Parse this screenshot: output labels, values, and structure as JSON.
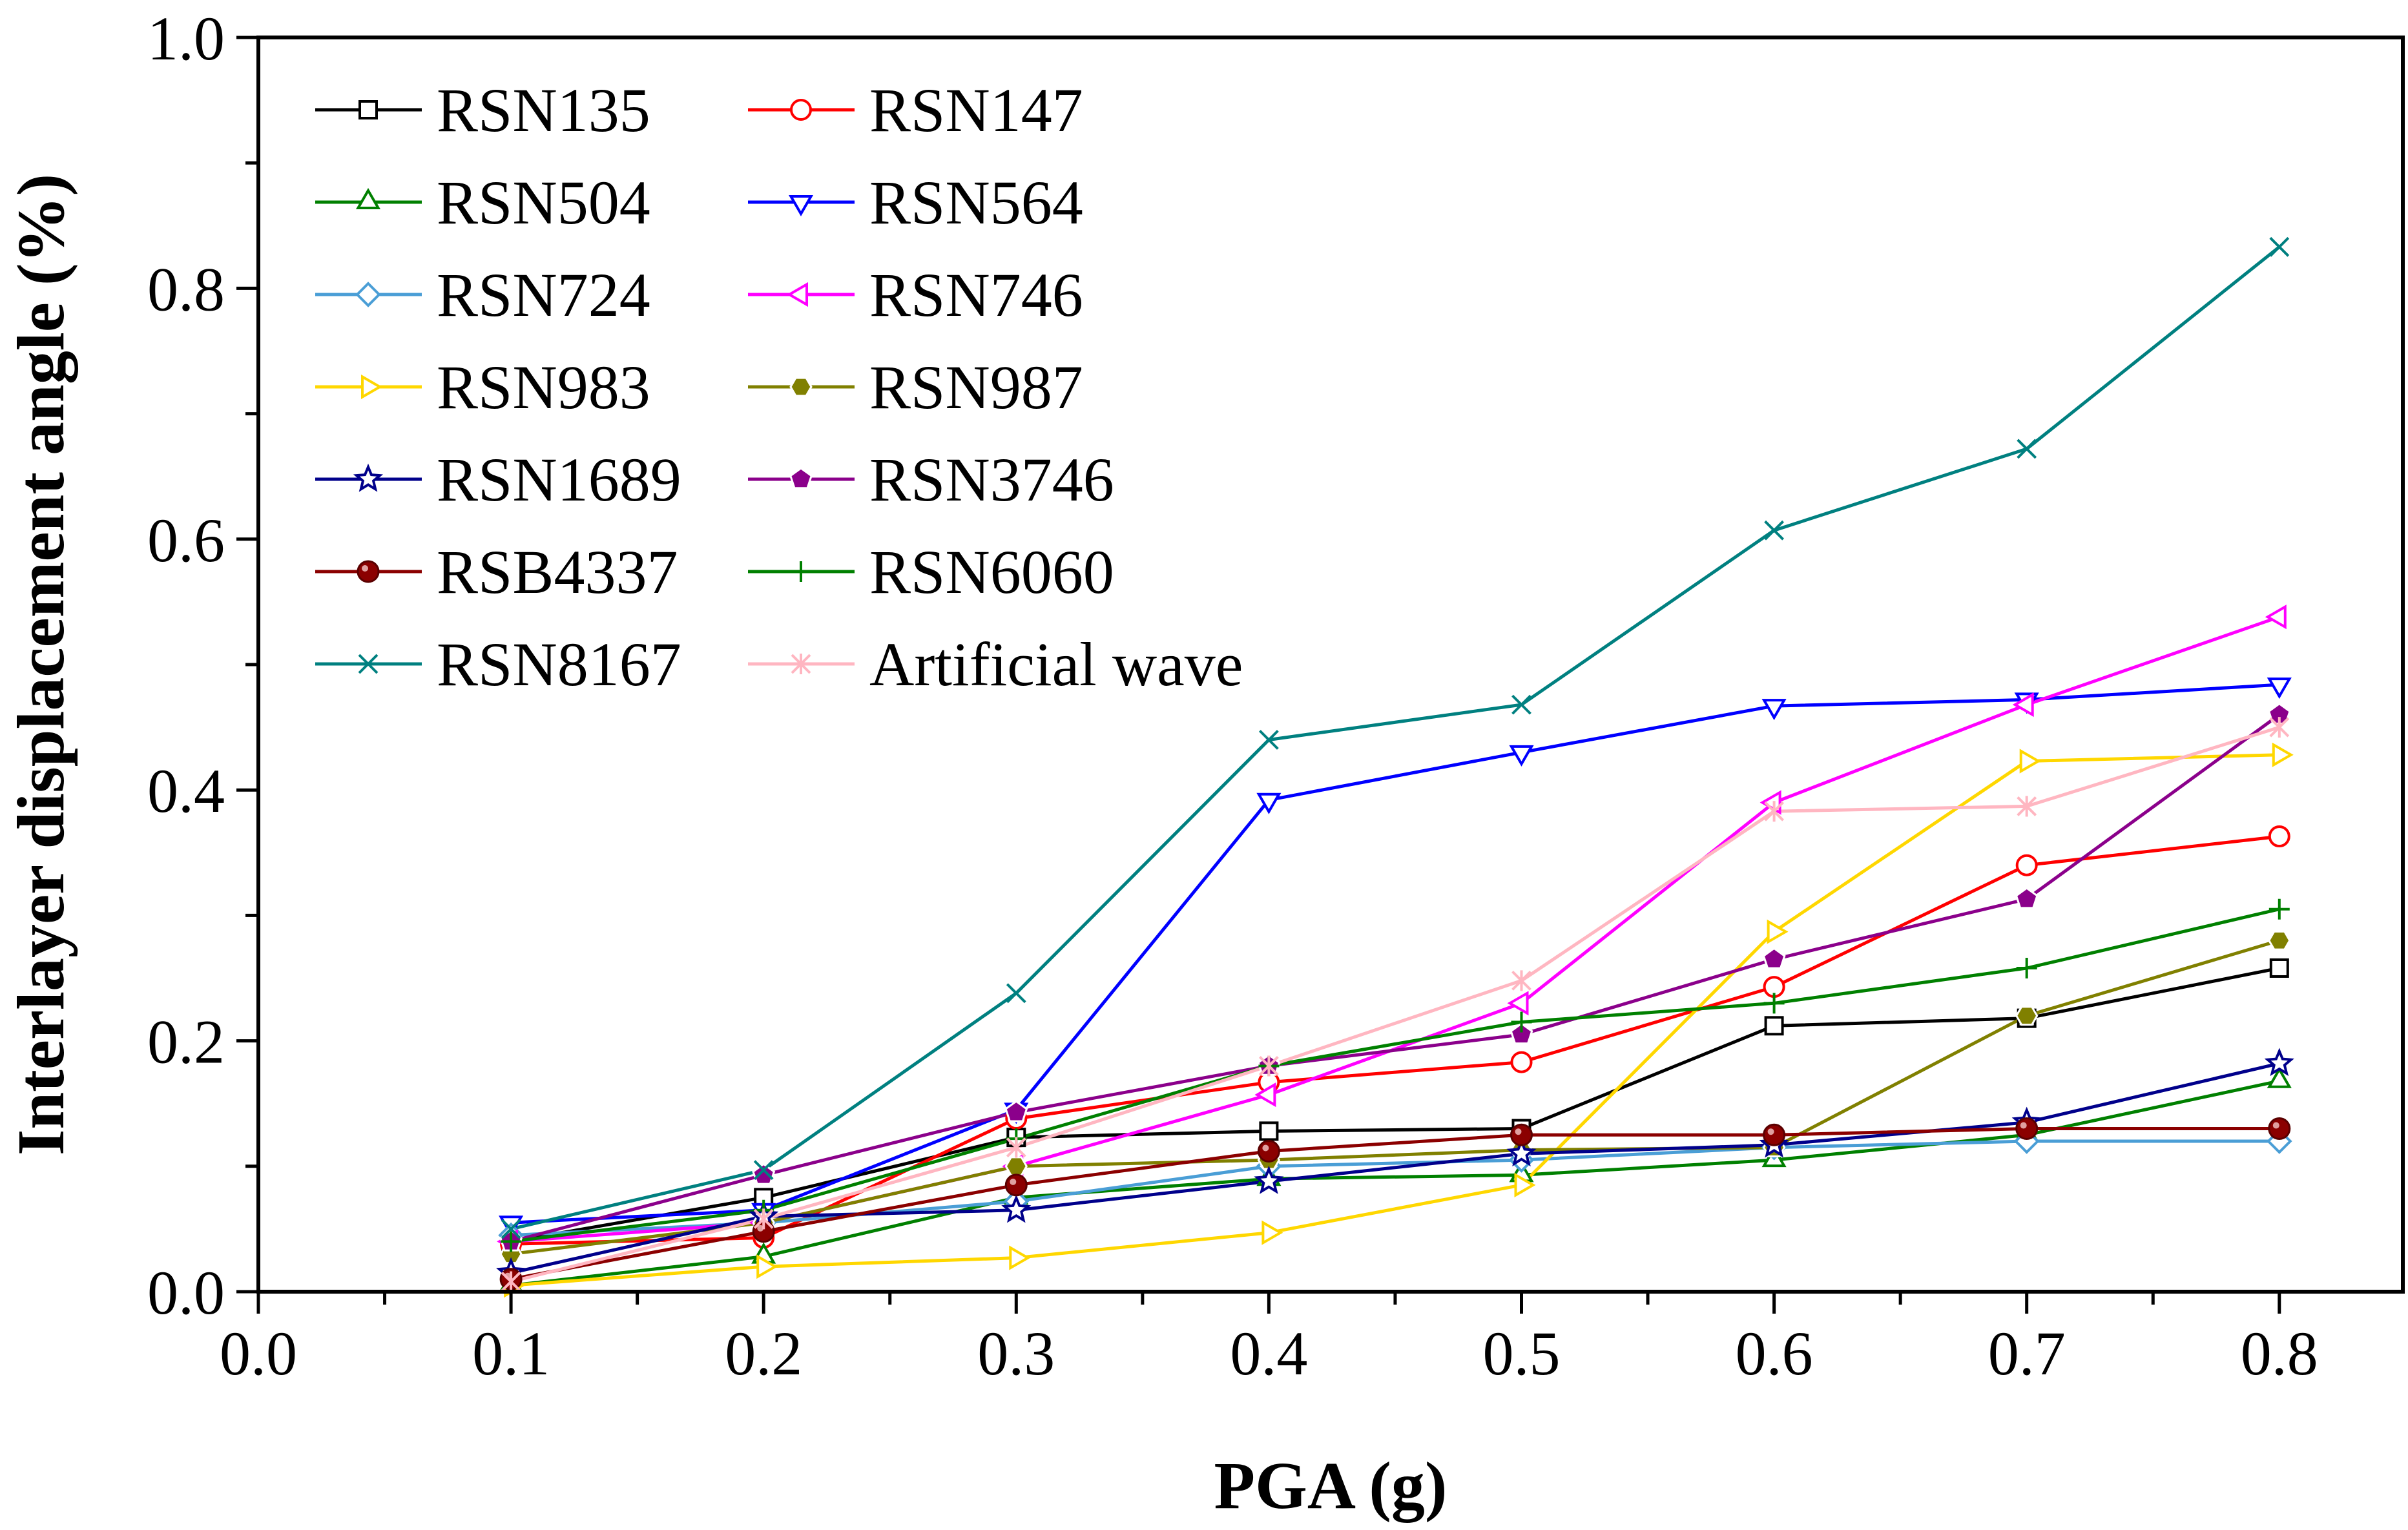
{
  "chart_data": {
    "type": "line",
    "title": "",
    "xlabel": "PGA (g)",
    "ylabel": "Interlayer displacement angle (%)",
    "xlim": [
      0.0,
      0.85
    ],
    "ylim": [
      0.0,
      1.0
    ],
    "xticks": [
      "0.0",
      "0.1",
      "0.2",
      "0.3",
      "0.4",
      "0.5",
      "0.6",
      "0.7",
      "0.8"
    ],
    "yticks": [
      "0.0",
      "0.2",
      "0.4",
      "0.6",
      "0.8",
      "1.0"
    ],
    "grid": false,
    "legend_position": "top-left",
    "x": [
      0.1,
      0.2,
      0.3,
      0.4,
      0.5,
      0.6,
      0.7,
      0.8
    ],
    "series": [
      {
        "name": "RSN135",
        "color": "#000000",
        "marker": "square-open",
        "values": [
          0.04,
          0.075,
          0.123,
          0.128,
          0.13,
          0.212,
          0.218,
          0.258
        ]
      },
      {
        "name": "RSN147",
        "color": "#ff0000",
        "marker": "circle-open",
        "values": [
          0.038,
          0.043,
          0.138,
          0.167,
          0.183,
          0.243,
          0.34,
          0.363
        ]
      },
      {
        "name": "RSN504",
        "color": "#008000",
        "marker": "triangle-up-open",
        "values": [
          0.005,
          0.028,
          0.075,
          0.09,
          0.093,
          0.105,
          0.125,
          0.168
        ]
      },
      {
        "name": "RSN564",
        "color": "#0000ff",
        "marker": "triangle-down-open",
        "values": [
          0.055,
          0.065,
          0.145,
          0.392,
          0.43,
          0.467,
          0.472,
          0.484
        ]
      },
      {
        "name": "RSN724",
        "color": "#4a9ed6",
        "marker": "diamond-open",
        "values": [
          0.045,
          0.055,
          0.072,
          0.1,
          0.105,
          0.115,
          0.12,
          0.12
        ]
      },
      {
        "name": "RSN746",
        "color": "#ff00ff",
        "marker": "triangle-left-open",
        "values": [
          0.04,
          0.055,
          0.1,
          0.157,
          0.23,
          0.39,
          0.468,
          0.538
        ]
      },
      {
        "name": "RSN983",
        "color": "#ffd700",
        "marker": "triangle-right-open",
        "values": [
          0.005,
          0.02,
          0.027,
          0.047,
          0.085,
          0.287,
          0.423,
          0.428
        ]
      },
      {
        "name": "RSN987",
        "color": "#808000",
        "marker": "hexagon",
        "values": [
          0.03,
          0.055,
          0.1,
          0.105,
          0.113,
          0.115,
          0.22,
          0.28
        ]
      },
      {
        "name": "RSN1689",
        "color": "#00008b",
        "marker": "star-open",
        "values": [
          0.015,
          0.06,
          0.065,
          0.088,
          0.11,
          0.117,
          0.135,
          0.182
        ]
      },
      {
        "name": "RSN3746",
        "color": "#8b008b",
        "marker": "pentagon",
        "values": [
          0.04,
          0.093,
          0.143,
          0.18,
          0.205,
          0.265,
          0.313,
          0.46
        ]
      },
      {
        "name": "RSB4337",
        "color": "#8b0000",
        "marker": "sphere",
        "values": [
          0.01,
          0.048,
          0.085,
          0.112,
          0.125,
          0.125,
          0.13,
          0.13
        ]
      },
      {
        "name": "RSN6060",
        "color": "#008000",
        "marker": "plus",
        "values": [
          0.04,
          0.065,
          0.122,
          0.18,
          0.215,
          0.23,
          0.258,
          0.305
        ]
      },
      {
        "name": "RSN8167",
        "color": "#008080",
        "marker": "x",
        "values": [
          0.05,
          0.097,
          0.238,
          0.44,
          0.468,
          0.607,
          0.672,
          0.833
        ]
      },
      {
        "name": "Artificial wave",
        "color": "#ffb6c1",
        "marker": "asterisk",
        "values": [
          0.008,
          0.058,
          0.115,
          0.18,
          0.248,
          0.383,
          0.387,
          0.45
        ]
      }
    ]
  }
}
